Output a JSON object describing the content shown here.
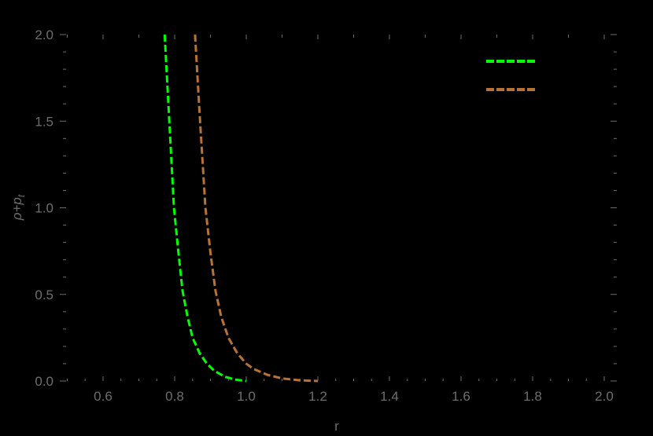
{
  "chart_data": {
    "type": "line",
    "title": "",
    "xlabel": "r",
    "ylabel": "ρ+p_t",
    "ylabel_parts": {
      "main": "ρ+p",
      "sub": "t"
    },
    "xlim": [
      0.5,
      2.03
    ],
    "ylim": [
      0.0,
      2.0
    ],
    "x_ticks": [
      0.6,
      0.8,
      1.0,
      1.2,
      1.4,
      1.6,
      1.8,
      2.0
    ],
    "x_tick_labels": [
      "0.6",
      "0.8",
      "1.0",
      "1.2",
      "1.4",
      "1.6",
      "1.8",
      "2.0"
    ],
    "y_ticks": [
      0.0,
      0.5,
      1.0,
      1.5,
      2.0
    ],
    "y_tick_labels": [
      "0.0",
      "0.5",
      "1.0",
      "1.5",
      "2.0"
    ],
    "grid": false,
    "legend_position": "top-right",
    "background": "#000000",
    "series": [
      {
        "name": "",
        "color": "#00ff00",
        "style": "dashed",
        "x": [
          0.772,
          0.785,
          0.798,
          0.81,
          0.822,
          0.836,
          0.85,
          0.87,
          0.89,
          0.91,
          0.94,
          0.97,
          1.0
        ],
        "y": [
          2.0,
          1.5,
          1.0,
          0.75,
          0.52,
          0.37,
          0.25,
          0.16,
          0.1,
          0.06,
          0.025,
          0.008,
          0.0
        ]
      },
      {
        "name": "",
        "color": "#b87333",
        "style": "dashed",
        "x": [
          0.857,
          0.871,
          0.886,
          0.9,
          0.914,
          0.93,
          0.95,
          0.975,
          1.0,
          1.02,
          1.06,
          1.1,
          1.15,
          1.2
        ],
        "y": [
          2.0,
          1.5,
          1.0,
          0.74,
          0.52,
          0.37,
          0.25,
          0.16,
          0.1,
          0.07,
          0.035,
          0.015,
          0.004,
          0.0
        ]
      }
    ]
  }
}
